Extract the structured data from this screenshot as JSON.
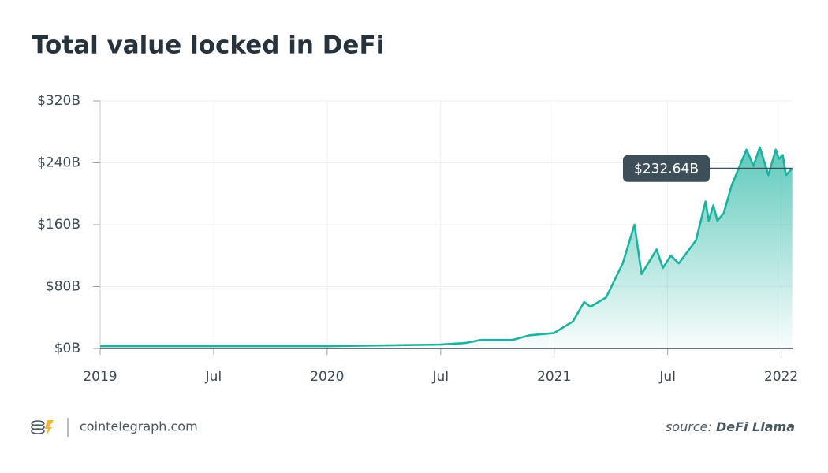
{
  "chart_data": {
    "type": "line",
    "title": "Total value locked in DeFi",
    "x": [
      2019.0,
      2020.0,
      2020.5,
      2020.608,
      2020.677,
      2020.816,
      2020.892,
      2021.0,
      2021.083,
      2021.132,
      2021.16,
      2021.229,
      2021.302,
      2021.354,
      2021.385,
      2021.451,
      2021.479,
      2021.514,
      2021.549,
      2021.625,
      2021.667,
      2021.681,
      2021.701,
      2021.719,
      2021.747,
      2021.781,
      2021.847,
      2021.878,
      2021.906,
      2021.944,
      2021.976,
      2021.99,
      2022.007,
      2022.021,
      2022.049
    ],
    "values": [
      3,
      3,
      5,
      7,
      11,
      11,
      17,
      20,
      35,
      60,
      54,
      66,
      110,
      160,
      96,
      128,
      104,
      120,
      110,
      140,
      190,
      165,
      185,
      165,
      175,
      210,
      257,
      236,
      260,
      224,
      257,
      245,
      250,
      224,
      232.64
    ],
    "color": "#1bb3a0",
    "annotation": "$232.64B",
    "xlim": [
      2019,
      2022.05
    ],
    "xticks": [
      2019,
      {
        "value": 2019.5,
        "label": "Jul"
      },
      2020,
      {
        "value": 2020.5,
        "label": "Jul"
      },
      2021,
      {
        "value": 2021.5,
        "label": "Jul"
      },
      2022
    ],
    "ylim": [
      0,
      320
    ],
    "yticks": [
      {
        "value": 0,
        "label": "$0B"
      },
      {
        "value": 80,
        "label": "$80B"
      },
      {
        "value": 160,
        "label": "$160B"
      },
      {
        "value": 240,
        "label": "$240B"
      },
      {
        "value": 320,
        "label": "$320B"
      }
    ],
    "grid": true
  },
  "footer": {
    "site": "cointelegraph.com",
    "source_prefix": "source:",
    "source": "DeFi Llama"
  }
}
